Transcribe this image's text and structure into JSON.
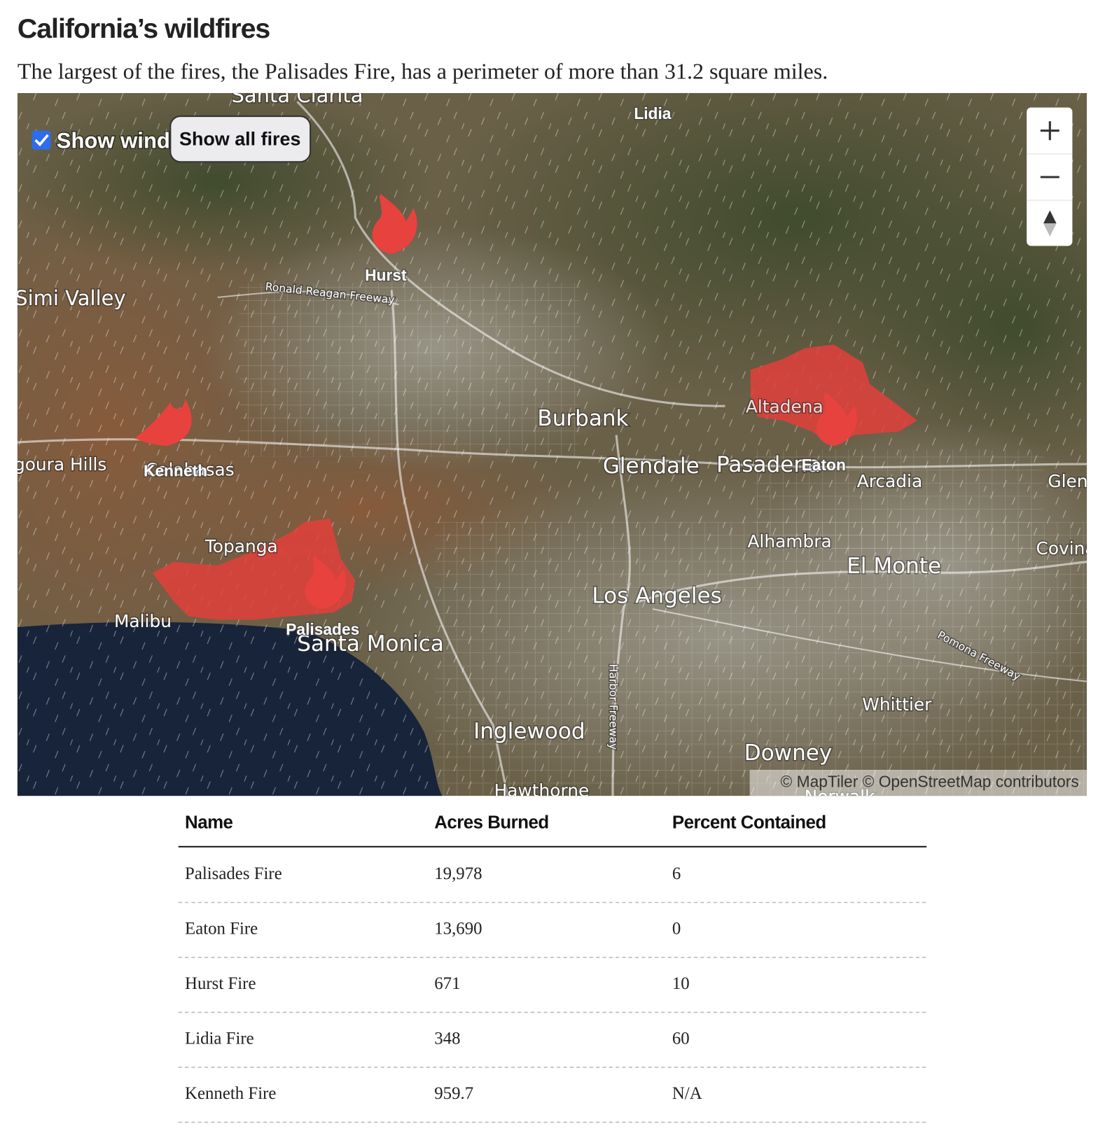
{
  "header": {
    "title": "California’s wildfires",
    "subtitle": "The largest of the fires, the Palisades Fire, has a perimeter of more than 31.2 square miles."
  },
  "map": {
    "controls": {
      "show_wind": "Show wind",
      "show_all_fires": "Show all fires"
    },
    "fire_labels": [
      "Lidia",
      "Hurst",
      "Kenneth",
      "Eaton",
      "Palisades"
    ],
    "place_labels": [
      "Santa Clarita",
      "Simi Valley",
      "Agoura Hills",
      "Calabasas",
      "Burbank",
      "Glendale",
      "Pasadena",
      "Altadena",
      "Arcadia",
      "Glendora",
      "Alhambra",
      "El Monte",
      "Covina",
      "Los Angeles",
      "Topanga",
      "Malibu",
      "Santa Monica",
      "Inglewood",
      "Whittier",
      "Downey",
      "Hawthorne",
      "Norwalk"
    ],
    "road_labels": [
      "Ronald Reagan Freeway",
      "Harbor Freeway",
      "Pomona Freeway"
    ],
    "attribution": "© MapTiler © OpenStreetMap contributors"
  },
  "table": {
    "columns": [
      "Name",
      "Acres Burned",
      "Percent Contained"
    ],
    "rows": [
      [
        "Palisades Fire",
        "19,978",
        "6"
      ],
      [
        "Eaton Fire",
        "13,690",
        "0"
      ],
      [
        "Hurst Fire",
        "671",
        "10"
      ],
      [
        "Lidia Fire",
        "348",
        "60"
      ],
      [
        "Kenneth Fire",
        "959.7",
        "N/A"
      ]
    ]
  }
}
